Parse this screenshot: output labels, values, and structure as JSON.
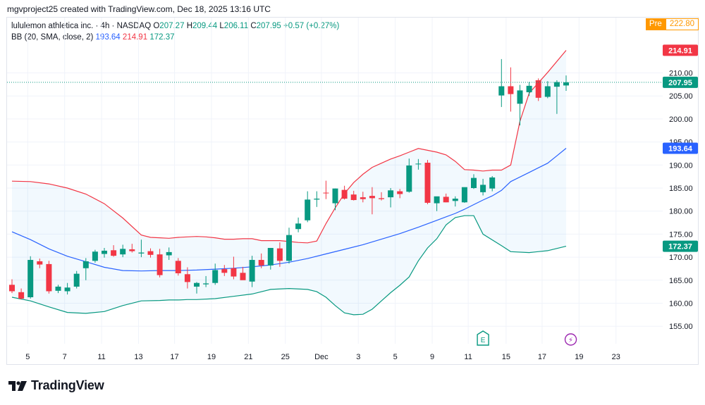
{
  "header": {
    "credit": "mgvproject25 created with TradingView.com, Dec 18, 2025 13:16 UTC"
  },
  "legend": {
    "symbol": "lululemon athletica inc. · 4h · NASDAQ",
    "o_label": "O",
    "o_value": "207.27",
    "h_label": "H",
    "h_value": "209.44",
    "l_label": "L",
    "l_value": "206.11",
    "c_label": "C",
    "c_value": "207.95",
    "change": "+0.57 (+0.27%)",
    "indicator": "BB (20, SMA, close, 2)",
    "bb_basis": "193.64",
    "bb_upper": "214.91",
    "bb_lower": "172.37"
  },
  "premarket": {
    "tag": "Pre",
    "value": "222.80"
  },
  "brand": {
    "name": "TradingView"
  },
  "colors": {
    "up": "#089981",
    "down": "#f23645",
    "basis": "#2962ff",
    "upper": "#f23645",
    "lower": "#089981",
    "fill": "#2196f3",
    "pre": "#ff9800"
  },
  "chart_data": {
    "type": "candlestick",
    "title": "lululemon athletica inc. · 4h · NASDAQ",
    "ylim": [
      151,
      223
    ],
    "y_ticks": [
      "155.00",
      "160.00",
      "165.00",
      "170.00",
      "175.00",
      "180.00",
      "185.00",
      "190.00",
      "195.00",
      "200.00",
      "205.00",
      "210.00"
    ],
    "y_tick_values": [
      155,
      160,
      165,
      170,
      175,
      180,
      185,
      190,
      195,
      200,
      205,
      210
    ],
    "x_ticks": [
      {
        "label": "5",
        "i": 1.7
      },
      {
        "label": "7",
        "i": 5.7
      },
      {
        "label": "11",
        "i": 9.7
      },
      {
        "label": "13",
        "i": 13.7
      },
      {
        "label": "17",
        "i": 17.6
      },
      {
        "label": "19",
        "i": 21.6
      },
      {
        "label": "21",
        "i": 25.6
      },
      {
        "label": "25",
        "i": 29.6
      },
      {
        "label": "Dec",
        "i": 33.5
      },
      {
        "label": "3",
        "i": 37.5
      },
      {
        "label": "5",
        "i": 41.5
      },
      {
        "label": "9",
        "i": 45.5
      },
      {
        "label": "11",
        "i": 49.4
      },
      {
        "label": "15",
        "i": 53.5
      },
      {
        "label": "17",
        "i": 57.4
      },
      {
        "label": "19",
        "i": 61.4
      },
      {
        "label": "23",
        "i": 65.4
      }
    ],
    "candles": [
      {
        "o": 164.0,
        "h": 165.2,
        "l": 162.2,
        "c": 162.6
      },
      {
        "o": 162.4,
        "h": 163.2,
        "l": 160.8,
        "c": 161.0
      },
      {
        "o": 161.3,
        "h": 170.2,
        "l": 161.0,
        "c": 169.4
      },
      {
        "o": 169.1,
        "h": 169.7,
        "l": 167.6,
        "c": 168.4
      },
      {
        "o": 168.5,
        "h": 169.2,
        "l": 162.1,
        "c": 162.6
      },
      {
        "o": 162.7,
        "h": 164.0,
        "l": 162.2,
        "c": 163.6
      },
      {
        "o": 162.6,
        "h": 164.4,
        "l": 161.9,
        "c": 163.4
      },
      {
        "o": 163.6,
        "h": 167.0,
        "l": 163.2,
        "c": 166.4
      },
      {
        "o": 167.6,
        "h": 169.8,
        "l": 165.0,
        "c": 169.1
      },
      {
        "o": 169.2,
        "h": 171.6,
        "l": 168.8,
        "c": 171.2
      },
      {
        "o": 170.7,
        "h": 172.0,
        "l": 169.9,
        "c": 171.4
      },
      {
        "o": 171.5,
        "h": 172.6,
        "l": 170.1,
        "c": 170.3
      },
      {
        "o": 170.6,
        "h": 172.7,
        "l": 170.0,
        "c": 171.8
      },
      {
        "o": 171.7,
        "h": 172.9,
        "l": 171.0,
        "c": 171.3
      },
      {
        "o": 170.8,
        "h": 173.8,
        "l": 170.0,
        "c": 171.0
      },
      {
        "o": 171.3,
        "h": 171.9,
        "l": 169.9,
        "c": 170.5
      },
      {
        "o": 170.6,
        "h": 171.8,
        "l": 165.6,
        "c": 166.1
      },
      {
        "o": 170.4,
        "h": 172.1,
        "l": 169.4,
        "c": 171.1
      },
      {
        "o": 169.2,
        "h": 169.8,
        "l": 166.0,
        "c": 166.5
      },
      {
        "o": 166.3,
        "h": 167.8,
        "l": 163.2,
        "c": 164.6
      },
      {
        "o": 163.6,
        "h": 164.6,
        "l": 162.1,
        "c": 164.4
      },
      {
        "o": 164.1,
        "h": 165.9,
        "l": 163.5,
        "c": 164.3
      },
      {
        "o": 164.4,
        "h": 168.6,
        "l": 164.0,
        "c": 167.2
      },
      {
        "o": 167.4,
        "h": 168.3,
        "l": 165.9,
        "c": 166.6
      },
      {
        "o": 167.6,
        "h": 170.1,
        "l": 165.2,
        "c": 165.8
      },
      {
        "o": 166.6,
        "h": 167.9,
        "l": 165.4,
        "c": 165.0
      },
      {
        "o": 164.7,
        "h": 170.3,
        "l": 163.5,
        "c": 169.4
      },
      {
        "o": 169.4,
        "h": 170.8,
        "l": 167.6,
        "c": 168.2
      },
      {
        "o": 168.2,
        "h": 172.0,
        "l": 167.3,
        "c": 172.0
      },
      {
        "o": 171.9,
        "h": 173.2,
        "l": 167.9,
        "c": 169.2
      },
      {
        "o": 169.2,
        "h": 176.4,
        "l": 168.6,
        "c": 174.8
      },
      {
        "o": 176.1,
        "h": 178.6,
        "l": 175.4,
        "c": 177.3
      },
      {
        "o": 178.0,
        "h": 184.3,
        "l": 177.6,
        "c": 182.5
      },
      {
        "o": 182.5,
        "h": 184.3,
        "l": 180.9,
        "c": 182.7
      },
      {
        "o": 184.0,
        "h": 186.6,
        "l": 182.6,
        "c": 183.9
      },
      {
        "o": 181.7,
        "h": 184.9,
        "l": 180.2,
        "c": 184.9
      },
      {
        "o": 184.6,
        "h": 185.5,
        "l": 182.5,
        "c": 182.7
      },
      {
        "o": 183.6,
        "h": 184.4,
        "l": 182.3,
        "c": 182.4
      },
      {
        "o": 183.0,
        "h": 184.2,
        "l": 181.9,
        "c": 182.6
      },
      {
        "o": 183.3,
        "h": 185.2,
        "l": 179.3,
        "c": 182.8
      },
      {
        "o": 182.8,
        "h": 184.1,
        "l": 182.3,
        "c": 182.6
      },
      {
        "o": 183.0,
        "h": 185.0,
        "l": 180.8,
        "c": 184.5
      },
      {
        "o": 184.3,
        "h": 184.8,
        "l": 182.8,
        "c": 183.7
      },
      {
        "o": 184.2,
        "h": 191.4,
        "l": 184.0,
        "c": 189.9
      },
      {
        "o": 190.2,
        "h": 191.3,
        "l": 189.0,
        "c": 190.3
      },
      {
        "o": 190.5,
        "h": 191.1,
        "l": 181.5,
        "c": 181.8
      },
      {
        "o": 181.7,
        "h": 182.8,
        "l": 180.0,
        "c": 183.2
      },
      {
        "o": 183.1,
        "h": 183.8,
        "l": 181.9,
        "c": 181.9
      },
      {
        "o": 182.2,
        "h": 183.2,
        "l": 181.0,
        "c": 182.7
      },
      {
        "o": 181.9,
        "h": 184.9,
        "l": 181.8,
        "c": 185.2
      },
      {
        "o": 185.0,
        "h": 188.0,
        "l": 184.8,
        "c": 187.2
      },
      {
        "o": 184.1,
        "h": 187.0,
        "l": 183.4,
        "c": 185.7
      },
      {
        "o": 184.9,
        "h": 187.6,
        "l": 184.3,
        "c": 187.3
      },
      {
        "o": 205.1,
        "h": 213.0,
        "l": 202.6,
        "c": 207.1
      },
      {
        "o": 207.1,
        "h": 211.2,
        "l": 201.6,
        "c": 205.4
      },
      {
        "o": 203.3,
        "h": 207.4,
        "l": 198.6,
        "c": 206.2
      },
      {
        "o": 205.8,
        "h": 208.0,
        "l": 205.0,
        "c": 207.2
      },
      {
        "o": 208.4,
        "h": 208.8,
        "l": 203.9,
        "c": 204.6
      },
      {
        "o": 204.8,
        "h": 208.2,
        "l": 204.5,
        "c": 207.1
      },
      {
        "o": 207.0,
        "h": 208.4,
        "l": 201.1,
        "c": 208.0
      },
      {
        "o": 207.27,
        "h": 209.44,
        "l": 206.11,
        "c": 207.95
      }
    ],
    "bb_upper": [
      186.5,
      186.4,
      185.9,
      185.0,
      183.7,
      181.6,
      178.5,
      174.8,
      174.3,
      174.2,
      174.1,
      174.3,
      174.4,
      174.5,
      174.4,
      174.2,
      173.9,
      173.9,
      174.0,
      174.0,
      173.6,
      173.6,
      173.6,
      173.4,
      173.2,
      173.1,
      173.5,
      177.3,
      180.7,
      183.8,
      186.2,
      188.0,
      189.5,
      190.4,
      191.3,
      192.0,
      192.8,
      193.6,
      193.2,
      192.8,
      192.2,
      190.8,
      189.0,
      188.9,
      188.7,
      188.9,
      188.9,
      190.0,
      199.5,
      205.6,
      210.1,
      214.9
    ],
    "bb_upper_idx": [
      0,
      2,
      4,
      6,
      8,
      10,
      12,
      14,
      15,
      16,
      17,
      18,
      19,
      20,
      21,
      22,
      23,
      24,
      25,
      26,
      27,
      28,
      29,
      30,
      31,
      32,
      33,
      34,
      35,
      36,
      37,
      38,
      39,
      40,
      41,
      42,
      43,
      44,
      45,
      46,
      47,
      48,
      49,
      50,
      51,
      52,
      53,
      54,
      55,
      56,
      58,
      60
    ],
    "bb_basis": [
      175.5,
      173.8,
      171.8,
      170.2,
      169.0,
      167.8,
      167.1,
      167.0,
      167.1,
      167.1,
      167.2,
      167.4,
      167.6,
      167.9,
      168.3,
      168.9,
      169.7,
      170.7,
      171.7,
      172.7,
      173.9,
      175.1,
      176.5,
      178.0,
      179.5,
      180.4,
      181.4,
      182.4,
      183.3,
      184.5,
      186.4,
      188.4,
      190.4,
      192.0,
      193.64
    ],
    "bb_basis_idx": [
      0,
      2,
      4,
      6,
      8,
      10,
      12,
      14,
      16,
      18,
      20,
      22,
      24,
      26,
      28,
      30,
      32,
      34,
      36,
      38,
      40,
      42,
      44,
      46,
      48,
      49,
      50,
      51,
      52,
      53,
      54,
      56,
      58,
      59,
      60
    ],
    "bb_lower": [
      161.3,
      160.5,
      159.2,
      158.0,
      157.8,
      158.2,
      159.5,
      160.5,
      160.6,
      160.7,
      160.7,
      160.8,
      160.8,
      161.0,
      161.5,
      162.0,
      163.0,
      163.2,
      163.0,
      162.5,
      161.3,
      159.5,
      157.9,
      157.5,
      157.6,
      158.7,
      160.5,
      162.3,
      163.9,
      165.7,
      169.2,
      172.0,
      174.0,
      177.0,
      178.6,
      179.0,
      179.0,
      175.0,
      172.5,
      171.2,
      171.0,
      171.4,
      172.37
    ],
    "bb_lower_idx": [
      0,
      2,
      4,
      6,
      8,
      10,
      12,
      14,
      16,
      17,
      18,
      19,
      20,
      22,
      24,
      26,
      28,
      30,
      32,
      33,
      34,
      35,
      36,
      37,
      38,
      39,
      40,
      41,
      42,
      43,
      44,
      45,
      46,
      47,
      48,
      49,
      50,
      51,
      53,
      54,
      56,
      58,
      60
    ],
    "price_labels": [
      {
        "text": "214.91",
        "value": 214.91,
        "color": "#f23645"
      },
      {
        "text": "207.95",
        "value": 207.95,
        "color": "#089981"
      },
      {
        "text": "193.64",
        "value": 193.64,
        "color": "#2962ff"
      },
      {
        "text": "172.37",
        "value": 172.37,
        "color": "#089981"
      }
    ],
    "events": [
      {
        "type": "earnings",
        "label": "E",
        "i": 51
      },
      {
        "type": "dividend-split",
        "label": "⚡",
        "i": 60.5
      }
    ]
  }
}
